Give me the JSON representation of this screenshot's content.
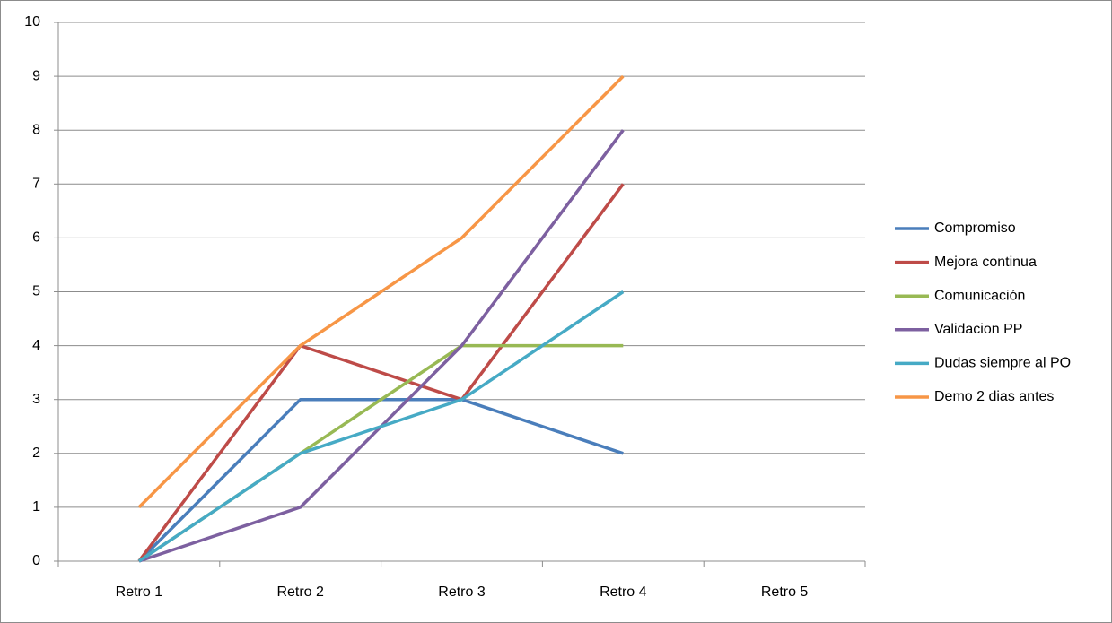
{
  "chart_data": {
    "type": "line",
    "categories": [
      "Retro 1",
      "Retro 2",
      "Retro 3",
      "Retro 4",
      "Retro 5"
    ],
    "series": [
      {
        "name": "Compromiso",
        "color": "#4a7ebb",
        "values": [
          0,
          3,
          3,
          2,
          null
        ]
      },
      {
        "name": "Mejora continua",
        "color": "#be4b48",
        "values": [
          0,
          4,
          3,
          7,
          null
        ]
      },
      {
        "name": "Comunicación",
        "color": "#98b954",
        "values": [
          0,
          2,
          4,
          4,
          null
        ]
      },
      {
        "name": "Validacion PP",
        "color": "#7d60a0",
        "values": [
          0,
          1,
          4,
          8,
          null
        ]
      },
      {
        "name": "Dudas siempre al PO",
        "color": "#46aac5",
        "values": [
          0,
          2,
          3,
          5,
          null
        ]
      },
      {
        "name": "Demo 2 dias antes",
        "color": "#f79646",
        "values": [
          1,
          4,
          6,
          9,
          null
        ]
      }
    ],
    "ylim": [
      0,
      10
    ],
    "yticks": [
      0,
      1,
      2,
      3,
      4,
      5,
      6,
      7,
      8,
      9,
      10
    ],
    "grid": true,
    "legend": "right"
  }
}
